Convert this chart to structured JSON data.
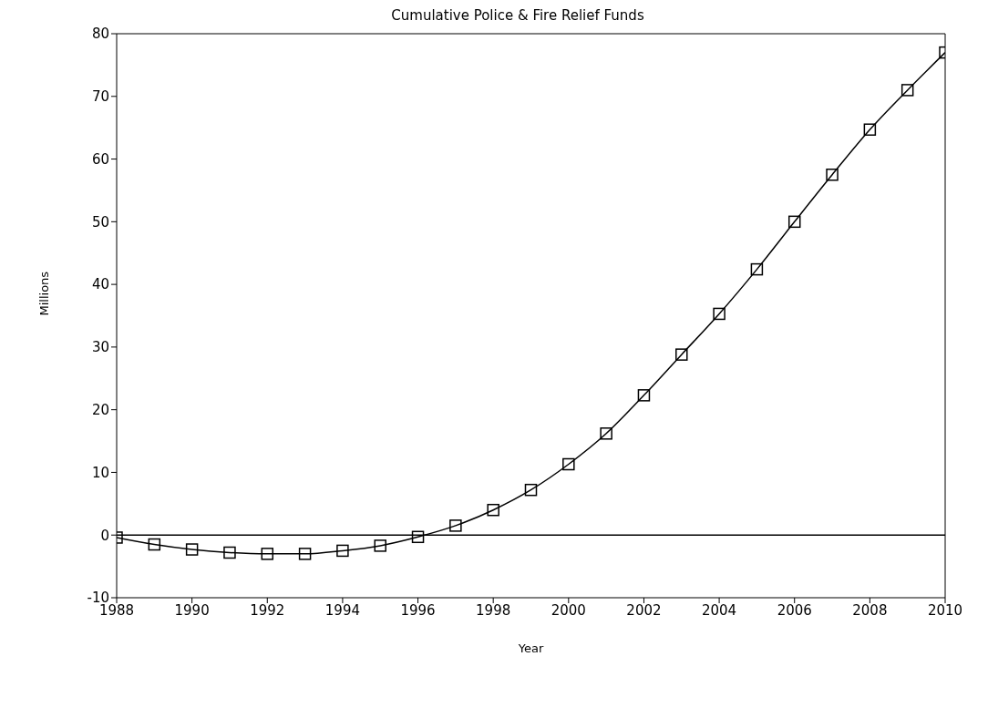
{
  "chart_data": {
    "type": "line",
    "title": "Cumulative Police & Fire Relief Funds",
    "xlabel": "Year",
    "ylabel": "Millions",
    "x": [
      1988,
      1989,
      1990,
      1991,
      1992,
      1993,
      1994,
      1995,
      1996,
      1997,
      1998,
      1999,
      2000,
      2001,
      2002,
      2003,
      2004,
      2005,
      2006,
      2007,
      2008,
      2009,
      2010
    ],
    "series": [
      {
        "color": "#000000",
        "values": [
          -0.4,
          -1.5,
          -2.3,
          -2.8,
          -3.0,
          -3.0,
          -2.5,
          -1.7,
          -0.3,
          1.5,
          4.0,
          7.2,
          11.3,
          16.2,
          22.3,
          28.8,
          35.3,
          42.4,
          50.0,
          57.5,
          64.7,
          71.0,
          77.0
        ]
      }
    ],
    "xlim": [
      1988,
      2010
    ],
    "xticks": [
      1988,
      1990,
      1992,
      1994,
      1996,
      1998,
      2000,
      2002,
      2004,
      2006,
      2008,
      2010
    ],
    "ylim": [
      -10,
      80
    ],
    "yticks": [
      -10,
      0,
      10,
      20,
      30,
      40,
      50,
      60,
      70,
      80
    ],
    "ref_lines": [
      {
        "axis": "y",
        "value": 0,
        "color": "#000000"
      }
    ],
    "marker": "square",
    "line_style": "solid",
    "grid": false,
    "legend": false
  }
}
